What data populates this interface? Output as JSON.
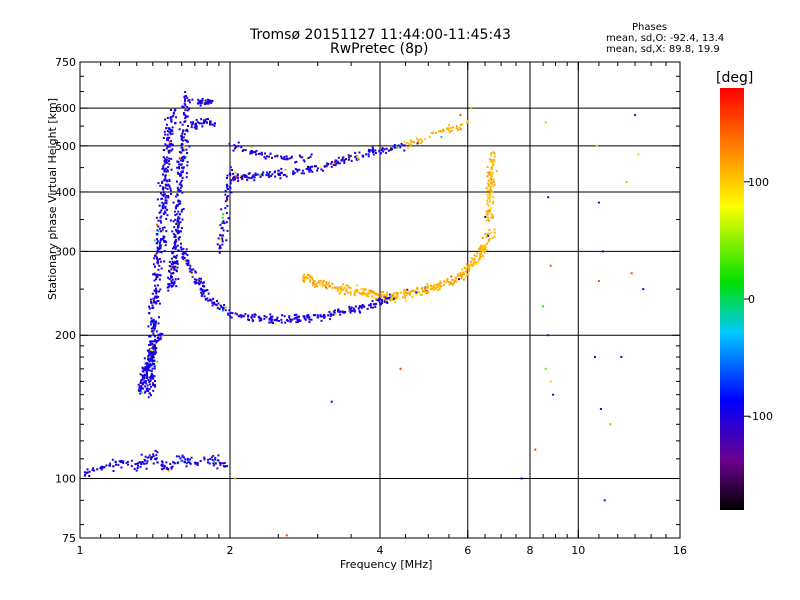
{
  "title_line1": "Tromsø 20151127 11:44:00-11:45:43",
  "title_line2": "RwPretec (8p)",
  "phase_header": "Phases",
  "stats_line1": "mean, sd,O:  -92.4, 13.4",
  "stats_line2": "mean, sd,X:  89.8, 19.9",
  "colorbar": {
    "title": "[deg]",
    "range": [
      -180,
      180
    ],
    "ticks": [
      {
        "value": 100,
        "label": "100"
      },
      {
        "value": 0,
        "label": "0"
      },
      {
        "value": -100,
        "label": "-100"
      }
    ]
  },
  "chart_data": {
    "type": "scatter",
    "xlabel": "Frequency [MHz]",
    "ylabel": "Stationary phase Virtual Height [km]",
    "xscale": "log",
    "yscale": "log",
    "xlim": [
      1,
      16
    ],
    "ylim": [
      75,
      750
    ],
    "x_ticks": [
      {
        "value": 1,
        "label": "1"
      },
      {
        "value": 2,
        "label": "2"
      },
      {
        "value": 4,
        "label": "4"
      },
      {
        "value": 6,
        "label": "6"
      },
      {
        "value": 8,
        "label": "8"
      },
      {
        "value": 10,
        "label": "10"
      },
      {
        "value": 16,
        "label": "16"
      }
    ],
    "x_gridlines": [
      2,
      4,
      6,
      8,
      10
    ],
    "y_ticks": [
      {
        "value": 75,
        "label": "75"
      },
      {
        "value": 100,
        "label": "100"
      },
      {
        "value": 200,
        "label": "200"
      },
      {
        "value": 300,
        "label": "300"
      },
      {
        "value": 400,
        "label": "400"
      },
      {
        "value": 500,
        "label": "500"
      },
      {
        "value": 600,
        "label": "600"
      },
      {
        "value": 750,
        "label": "750"
      }
    ],
    "y_gridlines": [
      100,
      200,
      300,
      400,
      500,
      600
    ],
    "traces": [
      {
        "phase": -100,
        "spread": 0.012,
        "count": 420,
        "points": [
          [
            1.38,
            150
          ],
          [
            1.4,
            200
          ],
          [
            1.42,
            260
          ],
          [
            1.45,
            320
          ],
          [
            1.48,
            400
          ],
          [
            1.5,
            480
          ],
          [
            1.52,
            560
          ],
          [
            1.53,
            600
          ]
        ]
      },
      {
        "phase": -100,
        "spread": 0.012,
        "count": 260,
        "points": [
          [
            1.52,
            250
          ],
          [
            1.55,
            300
          ],
          [
            1.58,
            380
          ],
          [
            1.6,
            450
          ],
          [
            1.62,
            550
          ],
          [
            1.65,
            640
          ]
        ]
      },
      {
        "phase": -100,
        "spread": 0.01,
        "count": 120,
        "points": [
          [
            1.32,
            150
          ],
          [
            1.36,
            170
          ],
          [
            1.4,
            185
          ],
          [
            1.44,
            200
          ]
        ]
      },
      {
        "phase": -100,
        "spread": 0.01,
        "count": 320,
        "points": [
          [
            1.6,
            300
          ],
          [
            1.8,
            240
          ],
          [
            2.0,
            222
          ],
          [
            2.5,
            215
          ],
          [
            3.0,
            218
          ],
          [
            3.5,
            226
          ],
          [
            4.0,
            235
          ],
          [
            4.3,
            242
          ]
        ]
      },
      {
        "phase": -100,
        "spread": 0.01,
        "count": 200,
        "points": [
          [
            2.0,
            430
          ],
          [
            2.5,
            435
          ],
          [
            3.0,
            450
          ],
          [
            3.5,
            470
          ],
          [
            4.0,
            490
          ],
          [
            4.5,
            500
          ]
        ]
      },
      {
        "phase": -100,
        "spread": 0.01,
        "count": 60,
        "points": [
          [
            2.0,
            500
          ],
          [
            2.3,
            480
          ],
          [
            2.6,
            470
          ],
          [
            2.9,
            470
          ]
        ]
      },
      {
        "phase": -100,
        "spread": 0.01,
        "count": 40,
        "points": [
          [
            1.68,
            550
          ],
          [
            1.75,
            560
          ],
          [
            1.85,
            560
          ]
        ]
      },
      {
        "phase": -100,
        "spread": 0.008,
        "count": 40,
        "points": [
          [
            1.72,
            620
          ],
          [
            1.85,
            615
          ]
        ]
      },
      {
        "phase": -100,
        "spread": 0.01,
        "count": 60,
        "points": [
          [
            1.92,
            300
          ],
          [
            1.95,
            350
          ],
          [
            1.98,
            390
          ],
          [
            2.0,
            450
          ]
        ]
      },
      {
        "phase": -100,
        "spread": 0.012,
        "count": 170,
        "points": [
          [
            1.0,
            102
          ],
          [
            1.1,
            104
          ],
          [
            1.2,
            108
          ],
          [
            1.3,
            106
          ],
          [
            1.4,
            112
          ],
          [
            1.5,
            105
          ],
          [
            1.6,
            110
          ],
          [
            1.7,
            108
          ],
          [
            1.85,
            110
          ],
          [
            1.95,
            106
          ]
        ]
      },
      {
        "phase": 110,
        "spread": 0.012,
        "count": 150,
        "points": [
          [
            2.8,
            265
          ],
          [
            3.0,
            258
          ],
          [
            3.5,
            248
          ],
          [
            4.0,
            243
          ],
          [
            4.2,
            240
          ]
        ]
      },
      {
        "phase": 110,
        "spread": 0.012,
        "count": 220,
        "points": [
          [
            4.2,
            240
          ],
          [
            4.6,
            245
          ],
          [
            5.0,
            250
          ],
          [
            5.5,
            258
          ],
          [
            6.0,
            272
          ],
          [
            6.4,
            300
          ],
          [
            6.7,
            330
          ]
        ]
      },
      {
        "phase": 110,
        "spread": 0.01,
        "count": 90,
        "points": [
          [
            6.6,
            350
          ],
          [
            6.65,
            400
          ],
          [
            6.7,
            450
          ],
          [
            6.75,
            480
          ]
        ]
      },
      {
        "phase": 110,
        "spread": 0.01,
        "count": 50,
        "points": [
          [
            4.5,
            500
          ],
          [
            5.0,
            520
          ],
          [
            5.5,
            540
          ],
          [
            6.0,
            560
          ]
        ]
      }
    ],
    "scattered_points": [
      [
        8.6,
        560,
        110
      ],
      [
        8.7,
        390,
        -100
      ],
      [
        8.8,
        280,
        150
      ],
      [
        8.5,
        230,
        20
      ],
      [
        8.7,
        200,
        -130
      ],
      [
        8.6,
        170,
        40
      ],
      [
        8.8,
        160,
        100
      ],
      [
        8.9,
        150,
        -100
      ],
      [
        10.9,
        500,
        100
      ],
      [
        11.0,
        380,
        -100
      ],
      [
        11.2,
        300,
        -120
      ],
      [
        11.0,
        260,
        150
      ],
      [
        10.8,
        180,
        -100
      ],
      [
        11.1,
        140,
        -100
      ],
      [
        11.6,
        130,
        40
      ],
      [
        12.5,
        420,
        110
      ],
      [
        12.8,
        270,
        150
      ],
      [
        13.0,
        580,
        -120
      ],
      [
        13.2,
        480,
        100
      ],
      [
        13.5,
        250,
        -100
      ],
      [
        12.2,
        180,
        -100
      ],
      [
        11.3,
        90,
        -100
      ],
      [
        7.7,
        100,
        -100
      ],
      [
        6.1,
        600,
        110
      ],
      [
        5.8,
        580,
        150
      ],
      [
        4.4,
        170,
        160
      ],
      [
        3.2,
        145,
        -100
      ],
      [
        2.05,
        100,
        110
      ],
      [
        2.6,
        76,
        150
      ],
      [
        8.2,
        115,
        160
      ]
    ]
  }
}
